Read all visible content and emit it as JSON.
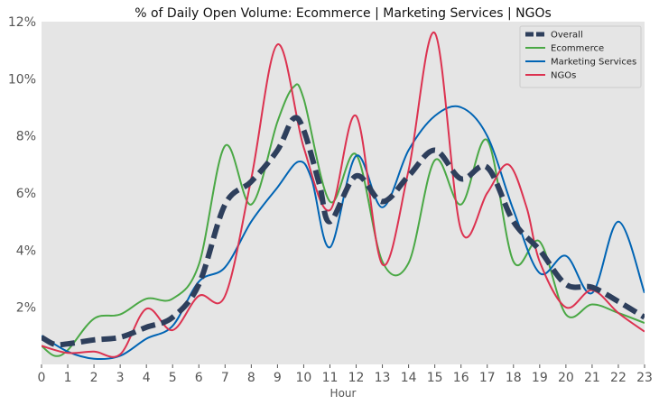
{
  "chart_data": {
    "type": "line",
    "title": "% of Daily Open Volume: Ecommerce | Marketing Services | NGOs",
    "xlabel": "Hour",
    "ylabel": "",
    "xlim": [
      0,
      23
    ],
    "ylim": [
      0,
      12
    ],
    "x_ticks": [
      "0",
      "1",
      "2",
      "3",
      "4",
      "5",
      "6",
      "7",
      "8",
      "9",
      "10",
      "11",
      "12",
      "13",
      "14",
      "15",
      "16",
      "17",
      "18",
      "19",
      "20",
      "21",
      "22",
      "23"
    ],
    "y_ticks": [
      {
        "value": 2,
        "label": "2%"
      },
      {
        "value": 4,
        "label": "4%"
      },
      {
        "value": 6,
        "label": "6%"
      },
      {
        "value": 8,
        "label": "8%"
      },
      {
        "value": 10,
        "label": "10%"
      },
      {
        "value": 12,
        "label": "12%"
      }
    ],
    "grid": false,
    "background": "#e5e5e5",
    "legend_position": "top-right",
    "series": [
      {
        "name": "Overall",
        "color": "#2e3f5c",
        "style": "dashed-thick",
        "points": [
          [
            0,
            0.95
          ],
          [
            0.5,
            0.7
          ],
          [
            1,
            0.72
          ],
          [
            2,
            0.86
          ],
          [
            3,
            0.95
          ],
          [
            4,
            1.3
          ],
          [
            5,
            1.65
          ],
          [
            6,
            2.8
          ],
          [
            7,
            5.6
          ],
          [
            8,
            6.4
          ],
          [
            9,
            7.5
          ],
          [
            9.6,
            8.6
          ],
          [
            10,
            8.2
          ],
          [
            10.6,
            6.3
          ],
          [
            11,
            5.0
          ],
          [
            12,
            6.6
          ],
          [
            13,
            5.7
          ],
          [
            14,
            6.6
          ],
          [
            15,
            7.5
          ],
          [
            16,
            6.5
          ],
          [
            17,
            6.9
          ],
          [
            18,
            5.0
          ],
          [
            19,
            4.0
          ],
          [
            20,
            2.8
          ],
          [
            21,
            2.7
          ],
          [
            22,
            2.2
          ],
          [
            23,
            1.65
          ]
        ]
      },
      {
        "name": "Ecommerce",
        "color": "#4aa845",
        "style": "solid",
        "points": [
          [
            0,
            0.65
          ],
          [
            0.5,
            0.3
          ],
          [
            1,
            0.5
          ],
          [
            2,
            1.6
          ],
          [
            3,
            1.75
          ],
          [
            4,
            2.3
          ],
          [
            5,
            2.3
          ],
          [
            6,
            3.5
          ],
          [
            7,
            7.65
          ],
          [
            8,
            5.6
          ],
          [
            9,
            8.5
          ],
          [
            9.6,
            9.7
          ],
          [
            10,
            9.3
          ],
          [
            11,
            5.7
          ],
          [
            12,
            7.35
          ],
          [
            13,
            3.6
          ],
          [
            14,
            3.55
          ],
          [
            15,
            7.15
          ],
          [
            16,
            5.6
          ],
          [
            17,
            7.85
          ],
          [
            18,
            3.6
          ],
          [
            19,
            4.3
          ],
          [
            20,
            1.75
          ],
          [
            21,
            2.1
          ],
          [
            22,
            1.8
          ],
          [
            23,
            1.45
          ]
        ]
      },
      {
        "name": "Marketing Services",
        "color": "#0064b4",
        "style": "solid",
        "points": [
          [
            0,
            1.0
          ],
          [
            1,
            0.45
          ],
          [
            2,
            0.2
          ],
          [
            3,
            0.3
          ],
          [
            4,
            0.9
          ],
          [
            5,
            1.35
          ],
          [
            6,
            2.9
          ],
          [
            7,
            3.4
          ],
          [
            8,
            5.0
          ],
          [
            9,
            6.2
          ],
          [
            9.8,
            7.1
          ],
          [
            10.3,
            6.5
          ],
          [
            11,
            4.1
          ],
          [
            12,
            7.3
          ],
          [
            13,
            5.5
          ],
          [
            14,
            7.5
          ],
          [
            15,
            8.7
          ],
          [
            16,
            9.0
          ],
          [
            17,
            8.0
          ],
          [
            18,
            5.4
          ],
          [
            19,
            3.2
          ],
          [
            20,
            3.8
          ],
          [
            21,
            2.5
          ],
          [
            22,
            5.0
          ],
          [
            23,
            2.5
          ]
        ]
      },
      {
        "name": "NGOs",
        "color": "#dc3250",
        "style": "solid",
        "points": [
          [
            0,
            0.65
          ],
          [
            1,
            0.4
          ],
          [
            2,
            0.45
          ],
          [
            3,
            0.35
          ],
          [
            4,
            1.95
          ],
          [
            5,
            1.2
          ],
          [
            6,
            2.4
          ],
          [
            7,
            2.4
          ],
          [
            8,
            6.5
          ],
          [
            9,
            11.2
          ],
          [
            10,
            7.6
          ],
          [
            11,
            5.4
          ],
          [
            12,
            8.7
          ],
          [
            13,
            3.5
          ],
          [
            14,
            6.8
          ],
          [
            15,
            11.6
          ],
          [
            16,
            4.7
          ],
          [
            17,
            6.0
          ],
          [
            17.8,
            7.0
          ],
          [
            18.5,
            5.5
          ],
          [
            19,
            3.6
          ],
          [
            20,
            2.0
          ],
          [
            21,
            2.6
          ],
          [
            22,
            1.8
          ],
          [
            23,
            1.15
          ]
        ]
      }
    ]
  }
}
